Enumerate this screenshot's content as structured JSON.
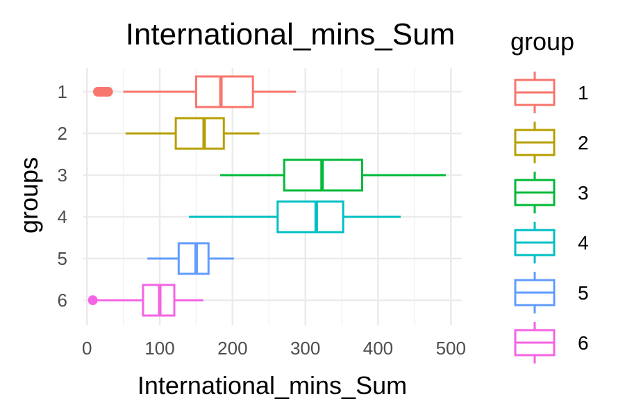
{
  "chart_data": {
    "type": "boxplot",
    "orientation": "horizontal",
    "title": "International_mins_Sum",
    "xlabel": "International_mins_Sum",
    "ylabel": "groups",
    "xlim": [
      -5,
      515
    ],
    "xticks": [
      0,
      100,
      200,
      300,
      400,
      500
    ],
    "categories": [
      "1",
      "2",
      "3",
      "4",
      "5",
      "6"
    ],
    "grid": true,
    "legend": {
      "title": "group",
      "position": "right"
    },
    "series": [
      {
        "name": "1",
        "color": "#F8766D",
        "min": 50,
        "q1": 150,
        "median": 184,
        "q3": 228,
        "max": 287,
        "outliers": [
          15,
          17,
          19,
          21,
          23,
          25,
          27,
          29
        ]
      },
      {
        "name": "2",
        "color": "#B79F00",
        "min": 53,
        "q1": 122,
        "median": 161,
        "q3": 188,
        "max": 237,
        "outliers": []
      },
      {
        "name": "3",
        "color": "#00BA38",
        "min": 183,
        "q1": 271,
        "median": 323,
        "q3": 378,
        "max": 493,
        "outliers": []
      },
      {
        "name": "4",
        "color": "#00BFC4",
        "min": 140,
        "q1": 262,
        "median": 315,
        "q3": 352,
        "max": 431,
        "outliers": []
      },
      {
        "name": "5",
        "color": "#619CFF",
        "min": 83,
        "q1": 126,
        "median": 150,
        "q3": 167,
        "max": 202,
        "outliers": []
      },
      {
        "name": "6",
        "color": "#F564E3",
        "min": 8,
        "q1": 77,
        "median": 100,
        "q3": 120,
        "max": 160,
        "outliers": [
          8
        ]
      }
    ]
  }
}
